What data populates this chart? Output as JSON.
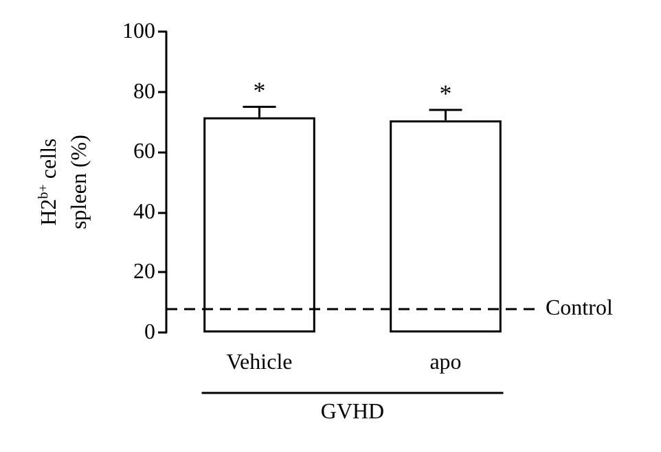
{
  "chart_data": {
    "type": "bar",
    "ylabel": "H2$^{b+}$ cells\nspleen (%)",
    "xlabel": "GVHD",
    "categories": [
      "Vehicle",
      "apo"
    ],
    "values": [
      71.5,
      70.5
    ],
    "color": "#ffffff",
    "errors": [
      [
        71.5,
        75
      ],
      [
        70.5,
        74
      ]
    ],
    "ylim": [
      0,
      100
    ],
    "yticks": [
      0,
      20,
      40,
      60,
      80,
      100
    ],
    "grid": false,
    "annotations": [
      {
        "text": "*",
        "x": "Vehicle",
        "y": 75
      },
      {
        "text": "*",
        "x": "apo",
        "y": 74
      }
    ],
    "ref_lines": [
      {
        "axis": "y",
        "value": 8,
        "label": "Control",
        "line_style": "dashed",
        "color": "#000000"
      }
    ]
  }
}
